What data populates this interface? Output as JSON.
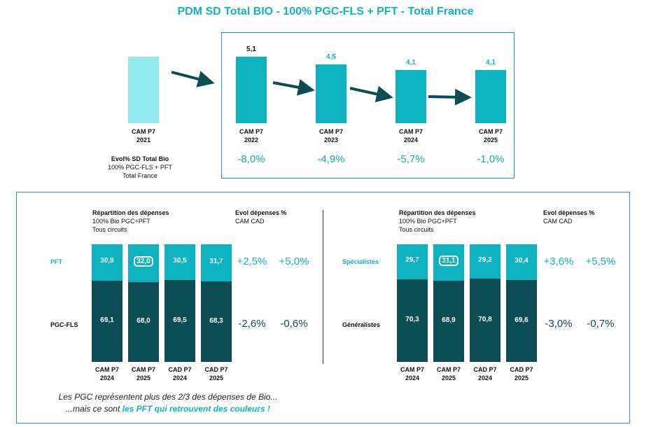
{
  "title": "PDM SD Total BIO - 100% PGC-FLS + PFT - Total France",
  "colors": {
    "accent": "#12b3bf",
    "bar": "#0db3bf",
    "bar_light": "#93eaee",
    "dark": "#0b4d52",
    "box": "#1d9aa6"
  },
  "chart_data": [
    {
      "type": "bar",
      "title": "PDM SD Total BIO - 100% PGC-FLS + PFT - Total France",
      "categories": [
        [
          "CAM P7",
          "2021"
        ],
        [
          "CAM P7",
          "2022"
        ],
        [
          "CAM P7",
          "2023"
        ],
        [
          "CAM P7",
          "2024"
        ],
        [
          "CAM P7",
          "2025"
        ]
      ],
      "values": [
        5.1,
        5.1,
        4.5,
        4.1,
        4.1
      ],
      "value_labels": [
        "",
        "5,1",
        "4,5",
        "4,1",
        "4,1"
      ],
      "evol": [
        "",
        "-8,0%",
        "-4,9%",
        "-5,7%",
        "-1,0%"
      ],
      "evol_label": [
        "Evol% SD Total Bio",
        "100% PGC-FLS + PFT",
        "Total France"
      ]
    },
    {
      "type": "stacked-bar",
      "header": [
        "Répartition des dépenses",
        "100% Bio PGC+PFT",
        "Tous circuits"
      ],
      "evol_header": [
        "Evol dépenses %",
        "CAM CAD"
      ],
      "categories": [
        [
          "CAM P7",
          "2024"
        ],
        [
          "CAM P7",
          "2025"
        ],
        [
          "CAD P7",
          "2024"
        ],
        [
          "CAD P7",
          "2025"
        ]
      ],
      "series": [
        {
          "name": "PFT",
          "values": [
            "30,9",
            "32,0",
            "30,5",
            "31,7"
          ],
          "evol": [
            "+2,5%",
            "+5,0%"
          ]
        },
        {
          "name": "PGC-FLS",
          "values": [
            "69,1",
            "68,0",
            "69,5",
            "68,3"
          ],
          "evol": [
            "-2,6%",
            "-0,6%"
          ]
        }
      ]
    },
    {
      "type": "stacked-bar",
      "header": [
        "Répartition des dépenses",
        "100% Bio PGC+PFT",
        "Tous circuits"
      ],
      "evol_header": [
        "Evol dépenses %",
        "CAM CAD"
      ],
      "categories": [
        [
          "CAM P7",
          "2024"
        ],
        [
          "CAM P7",
          "2025"
        ],
        [
          "CAD P7",
          "2024"
        ],
        [
          "CAD P7",
          "2025"
        ]
      ],
      "series": [
        {
          "name": "Spécialistes",
          "values": [
            "29,7",
            "31,1",
            "29,2",
            "30,4"
          ],
          "evol": [
            "+3,6%",
            "+5,5%"
          ]
        },
        {
          "name": "Généralistes",
          "values": [
            "70,3",
            "68,9",
            "70,8",
            "69,6"
          ],
          "evol": [
            "-3,0%",
            "-0,7%"
          ]
        }
      ]
    }
  ],
  "footnote": {
    "line1": "Les PGC représentent plus des 2/3 des dépenses de Bio...",
    "line2_prefix": "...mais ce sont ",
    "line2_highlight": "les PFT qui retrouvent des couleurs !"
  }
}
